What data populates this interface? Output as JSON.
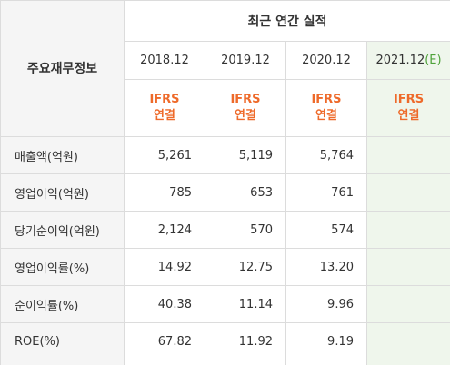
{
  "header": {
    "section_title": "최근 연간 실적",
    "row_header": "주요재무정보"
  },
  "columns": [
    {
      "period": "2018.12",
      "basis_line1": "IFRS",
      "basis_line2": "연결"
    },
    {
      "period": "2019.12",
      "basis_line1": "IFRS",
      "basis_line2": "연결"
    },
    {
      "period": "2020.12",
      "basis_line1": "IFRS",
      "basis_line2": "연결"
    },
    {
      "period": "2021.12",
      "estimate_mark": "(E)",
      "basis_line1": "IFRS",
      "basis_line2": "연결"
    }
  ],
  "rows": [
    {
      "label": "매출액(억원)",
      "values": [
        "5,261",
        "5,119",
        "5,764",
        ""
      ]
    },
    {
      "label": "영업이익(억원)",
      "values": [
        "785",
        "653",
        "761",
        ""
      ]
    },
    {
      "label": "당기순이익(억원)",
      "values": [
        "2,124",
        "570",
        "574",
        ""
      ]
    },
    {
      "label": "영업이익률(%)",
      "values": [
        "14.92",
        "12.75",
        "13.20",
        ""
      ]
    },
    {
      "label": "순이익률(%)",
      "values": [
        "40.38",
        "11.14",
        "9.96",
        ""
      ]
    },
    {
      "label": "ROE(%)",
      "values": [
        "67.82",
        "11.92",
        "9.19",
        ""
      ]
    }
  ],
  "colors": {
    "basis_text": "#ee6a2a",
    "estimate_column_bg": "#eff6ec",
    "estimate_mark": "#4fa33b"
  }
}
